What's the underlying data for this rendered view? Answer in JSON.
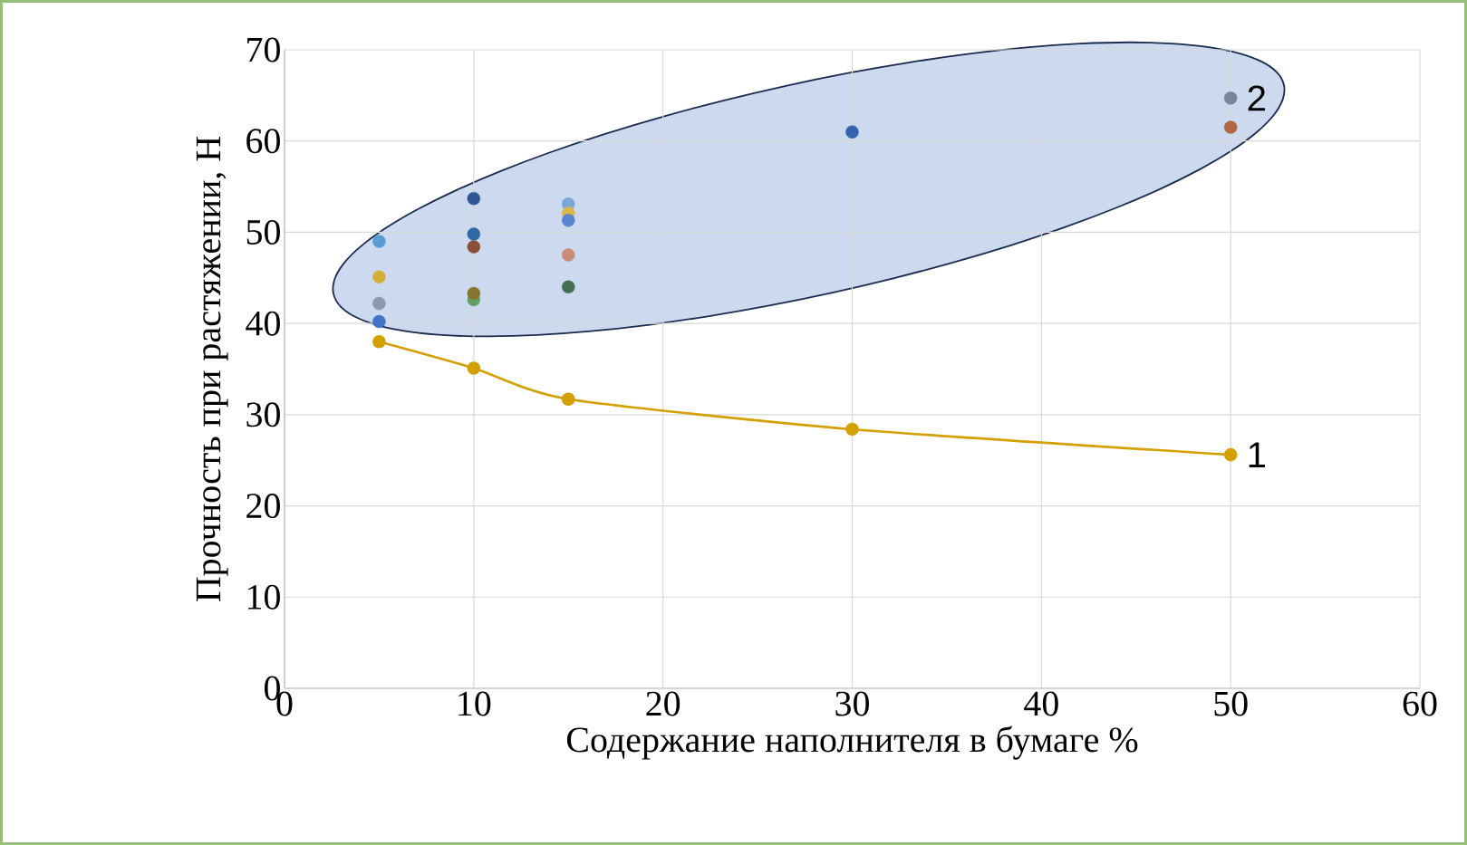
{
  "chart_data": {
    "type": "scatter",
    "xlabel": "Содержание наполнителя в бумаге %",
    "ylabel": "Прочность при растяжении, Н",
    "xlim": [
      0,
      60
    ],
    "xticks": [
      0,
      10,
      20,
      30,
      40,
      50,
      60
    ],
    "ylim": [
      0,
      70
    ],
    "yticks": [
      0,
      10,
      20,
      30,
      40,
      50,
      60,
      70
    ],
    "grid": true,
    "marker": "circle",
    "series": [
      {
        "type": "line",
        "color": "#d4a000",
        "x": [
          5,
          10,
          15,
          30,
          50
        ],
        "values": [
          38.0,
          35.1,
          31.7,
          28.4,
          25.6
        ]
      },
      {
        "x": [
          5,
          5,
          5,
          5,
          10,
          10,
          10,
          10,
          10,
          15,
          15,
          15,
          15,
          15,
          30,
          50,
          50
        ],
        "values": [
          49.0,
          45.1,
          42.2,
          40.2,
          53.7,
          49.8,
          48.4,
          42.6,
          43.3,
          53.1,
          52.1,
          51.3,
          47.5,
          44.0,
          61.0,
          64.7,
          61.5
        ],
        "colors": [
          "#5b9bd5",
          "#d4af37",
          "#8c9ab0",
          "#4472c4",
          "#2f5597",
          "#2e6aa8",
          "#8b5138",
          "#62a066",
          "#85752f",
          "#7aa6d8",
          "#d6b94a",
          "#5b85cf",
          "#c88d76",
          "#436e4f",
          "#3461b0",
          "#7a8499",
          "#b06640"
        ]
      }
    ],
    "annotations": [
      {
        "text": "1",
        "x": 50,
        "y": 25.6
      },
      {
        "text": "2",
        "x": 50,
        "y": 64.7
      }
    ]
  }
}
